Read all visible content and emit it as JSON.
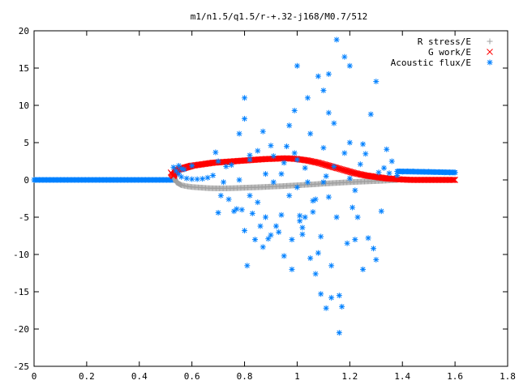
{
  "chart_data": {
    "type": "scatter",
    "title": "m1/n1.5/q1.5/r-+.32-j168/M0.7/512",
    "xlabel": "",
    "ylabel": "",
    "xlim": [
      0,
      1.8
    ],
    "ylim": [
      -25,
      20
    ],
    "x_ticks": [
      0,
      0.2,
      0.4,
      0.6,
      0.8,
      1,
      1.2,
      1.4,
      1.6,
      1.8
    ],
    "x_tick_labels": [
      "0",
      "0.2",
      "0.4",
      "0.6",
      "0.8",
      "1",
      "1.2",
      "1.4",
      "1.6",
      "1.8"
    ],
    "y_ticks": [
      -25,
      -20,
      -15,
      -10,
      -5,
      0,
      5,
      10,
      15,
      20
    ],
    "y_tick_labels": [
      "-25",
      "-20",
      "-15",
      "-10",
      "-5",
      "0",
      "5",
      "10",
      "15",
      "20"
    ],
    "grid": false,
    "legend_position": "top-right",
    "series": [
      {
        "name": "R stress/E",
        "marker": "plus",
        "color": "#a0a0a0",
        "points": [
          [
            0.53,
            0.9
          ],
          [
            0.535,
            0.2
          ],
          [
            0.54,
            -0.3
          ],
          [
            0.55,
            -0.5
          ],
          [
            0.56,
            -0.7
          ],
          [
            0.58,
            -0.85
          ],
          [
            0.6,
            -0.95
          ],
          [
            0.62,
            -1.0
          ],
          [
            0.64,
            -1.05
          ],
          [
            0.66,
            -1.1
          ],
          [
            0.68,
            -1.12
          ],
          [
            0.7,
            -1.13
          ],
          [
            0.72,
            -1.13
          ],
          [
            0.74,
            -1.12
          ],
          [
            0.76,
            -1.1
          ],
          [
            0.78,
            -1.08
          ],
          [
            0.8,
            -1.05
          ],
          [
            0.82,
            -1.02
          ],
          [
            0.84,
            -1.0
          ],
          [
            0.86,
            -0.97
          ],
          [
            0.88,
            -0.94
          ],
          [
            0.9,
            -0.9
          ],
          [
            0.92,
            -0.87
          ],
          [
            0.94,
            -0.84
          ],
          [
            0.96,
            -0.8
          ],
          [
            0.98,
            -0.76
          ],
          [
            1.0,
            -0.72
          ],
          [
            1.02,
            -0.68
          ],
          [
            1.04,
            -0.64
          ],
          [
            1.06,
            -0.6
          ],
          [
            1.08,
            -0.55
          ],
          [
            1.1,
            -0.5
          ],
          [
            1.12,
            -0.46
          ],
          [
            1.14,
            -0.42
          ],
          [
            1.16,
            -0.38
          ],
          [
            1.18,
            -0.34
          ],
          [
            1.2,
            -0.3
          ],
          [
            1.22,
            -0.27
          ],
          [
            1.24,
            -0.24
          ],
          [
            1.26,
            -0.21
          ],
          [
            1.28,
            -0.18
          ],
          [
            1.3,
            -0.15
          ],
          [
            1.32,
            -0.12
          ],
          [
            1.34,
            -0.08
          ],
          [
            1.36,
            -0.03
          ],
          [
            1.38,
            0.0
          ]
        ]
      },
      {
        "name": "G work/E",
        "marker": "cross",
        "color": "#ff0000",
        "points": [
          [
            0.52,
            1.0
          ],
          [
            0.53,
            0.5
          ],
          [
            0.535,
            0.9
          ],
          [
            0.54,
            1.2
          ],
          [
            0.55,
            1.4
          ],
          [
            0.56,
            1.5
          ],
          [
            0.57,
            1.6
          ],
          [
            0.58,
            1.7
          ],
          [
            0.59,
            1.8
          ],
          [
            0.6,
            1.9
          ],
          [
            0.62,
            2.0
          ],
          [
            0.64,
            2.1
          ],
          [
            0.66,
            2.2
          ],
          [
            0.68,
            2.3
          ],
          [
            0.7,
            2.35
          ],
          [
            0.72,
            2.4
          ],
          [
            0.74,
            2.45
          ],
          [
            0.76,
            2.5
          ],
          [
            0.78,
            2.55
          ],
          [
            0.8,
            2.6
          ],
          [
            0.82,
            2.65
          ],
          [
            0.84,
            2.7
          ],
          [
            0.86,
            2.75
          ],
          [
            0.88,
            2.8
          ],
          [
            0.9,
            2.82
          ],
          [
            0.92,
            2.85
          ],
          [
            0.94,
            2.88
          ],
          [
            0.96,
            2.9
          ],
          [
            0.98,
            2.85
          ],
          [
            1.0,
            2.8
          ],
          [
            1.02,
            2.7
          ],
          [
            1.04,
            2.6
          ],
          [
            1.06,
            2.45
          ],
          [
            1.08,
            2.3
          ],
          [
            1.1,
            2.1
          ],
          [
            1.12,
            1.9
          ],
          [
            1.14,
            1.7
          ],
          [
            1.16,
            1.5
          ],
          [
            1.18,
            1.3
          ],
          [
            1.2,
            1.1
          ],
          [
            1.22,
            0.9
          ],
          [
            1.24,
            0.75
          ],
          [
            1.26,
            0.6
          ],
          [
            1.28,
            0.5
          ],
          [
            1.3,
            0.4
          ],
          [
            1.32,
            0.3
          ],
          [
            1.34,
            0.2
          ],
          [
            1.36,
            0.15
          ],
          [
            1.38,
            0.1
          ],
          [
            1.4,
            0.05
          ],
          [
            1.42,
            0.02
          ],
          [
            1.44,
            0.0
          ],
          [
            1.46,
            0.0
          ],
          [
            1.48,
            0.0
          ],
          [
            1.5,
            0.0
          ],
          [
            1.52,
            0.0
          ],
          [
            1.54,
            0.0
          ],
          [
            1.56,
            0.0
          ],
          [
            1.58,
            0.0
          ],
          [
            1.6,
            0.0
          ]
        ]
      },
      {
        "name": "Acoustic flux/E",
        "marker": "star",
        "color": "#0080ff",
        "points": [
          [
            0.53,
            1.7
          ],
          [
            0.54,
            1.2
          ],
          [
            0.55,
            0.8
          ],
          [
            0.56,
            0.4
          ],
          [
            0.58,
            0.2
          ],
          [
            0.6,
            0.1
          ],
          [
            0.62,
            0.1
          ],
          [
            0.64,
            0.15
          ],
          [
            0.66,
            0.3
          ],
          [
            0.68,
            0.6
          ],
          [
            0.55,
            1.9
          ],
          [
            0.56,
            1.5
          ],
          [
            0.57,
            1.4
          ],
          [
            0.6,
            1.9
          ],
          [
            0.69,
            3.7
          ],
          [
            0.7,
            2.5
          ],
          [
            0.7,
            -4.4
          ],
          [
            0.71,
            -2.1
          ],
          [
            0.72,
            -0.3
          ],
          [
            0.73,
            1.8
          ],
          [
            0.74,
            -2.6
          ],
          [
            0.75,
            2.0
          ],
          [
            0.76,
            -4.2
          ],
          [
            0.77,
            -3.9
          ],
          [
            0.78,
            0.0
          ],
          [
            0.78,
            6.2
          ],
          [
            0.79,
            -4.0
          ],
          [
            0.8,
            11.0
          ],
          [
            0.8,
            8.2
          ],
          [
            0.8,
            -6.8
          ],
          [
            0.81,
            -11.5
          ],
          [
            0.82,
            2.7
          ],
          [
            0.82,
            -2.1
          ],
          [
            0.82,
            3.3
          ],
          [
            0.83,
            -4.5
          ],
          [
            0.84,
            -8.0
          ],
          [
            0.85,
            3.9
          ],
          [
            0.85,
            -3.0
          ],
          [
            0.86,
            -6.2
          ],
          [
            0.87,
            6.5
          ],
          [
            0.87,
            -9.0
          ],
          [
            0.88,
            0.8
          ],
          [
            0.88,
            -5.0
          ],
          [
            0.89,
            -7.9
          ],
          [
            0.9,
            4.6
          ],
          [
            0.9,
            -7.4
          ],
          [
            0.91,
            -0.3
          ],
          [
            0.91,
            3.2
          ],
          [
            0.92,
            -6.2
          ],
          [
            0.93,
            -7.0
          ],
          [
            0.94,
            0.8
          ],
          [
            0.94,
            -4.7
          ],
          [
            0.95,
            -10.2
          ],
          [
            0.95,
            2.3
          ],
          [
            0.96,
            4.5
          ],
          [
            0.97,
            -2.1
          ],
          [
            0.98,
            -8.0
          ],
          [
            0.98,
            -12.0
          ],
          [
            0.99,
            3.6
          ],
          [
            1.0,
            -1.0
          ],
          [
            1.0,
            15.3
          ],
          [
            1.0,
            2.7
          ],
          [
            1.01,
            -5.5
          ],
          [
            1.02,
            -7.3
          ],
          [
            1.03,
            1.6
          ],
          [
            1.03,
            -5.0
          ],
          [
            1.04,
            -0.3
          ],
          [
            1.04,
            11.0
          ],
          [
            1.05,
            6.2
          ],
          [
            1.06,
            -4.3
          ],
          [
            1.07,
            -2.6
          ],
          [
            1.08,
            -9.8
          ],
          [
            1.09,
            -7.6
          ],
          [
            1.1,
            4.3
          ],
          [
            1.1,
            -0.3
          ],
          [
            1.11,
            0.5
          ],
          [
            1.12,
            -2.3
          ],
          [
            1.12,
            9.0
          ],
          [
            1.13,
            -11.5
          ],
          [
            1.14,
            1.8
          ],
          [
            1.14,
            7.6
          ],
          [
            1.15,
            18.8
          ],
          [
            1.15,
            -5.0
          ],
          [
            1.16,
            -15.5
          ],
          [
            1.16,
            -20.5
          ],
          [
            1.17,
            -17.0
          ],
          [
            1.18,
            3.6
          ],
          [
            1.18,
            16.5
          ],
          [
            1.19,
            -8.5
          ],
          [
            1.2,
            0.2
          ],
          [
            1.2,
            5.0
          ],
          [
            1.21,
            -3.7
          ],
          [
            1.22,
            -8.0
          ],
          [
            1.22,
            -1.4
          ],
          [
            1.23,
            -5.0
          ],
          [
            1.24,
            2.1
          ],
          [
            1.25,
            4.8
          ],
          [
            1.25,
            -12.0
          ],
          [
            1.26,
            3.5
          ],
          [
            1.27,
            -7.8
          ],
          [
            1.28,
            8.8
          ],
          [
            1.29,
            -9.2
          ],
          [
            1.3,
            13.2
          ],
          [
            1.3,
            -10.7
          ],
          [
            1.31,
            1.0
          ],
          [
            1.32,
            -4.2
          ],
          [
            1.33,
            1.6
          ],
          [
            1.34,
            4.1
          ],
          [
            1.35,
            0.9
          ],
          [
            1.36,
            2.5
          ],
          [
            1.05,
            -10.5
          ],
          [
            1.07,
            -12.6
          ],
          [
            1.09,
            -15.3
          ],
          [
            1.11,
            -17.2
          ],
          [
            1.13,
            -15.8
          ],
          [
            1.1,
            12.0
          ],
          [
            1.2,
            15.3
          ],
          [
            1.06,
            -2.8
          ],
          [
            1.02,
            -6.4
          ],
          [
            0.97,
            7.3
          ],
          [
            0.99,
            9.3
          ],
          [
            1.01,
            -4.8
          ],
          [
            1.08,
            13.9
          ],
          [
            1.12,
            14.2
          ],
          [
            1.38,
            0.6
          ],
          [
            1.4,
            1.1
          ],
          [
            1.42,
            1.15
          ],
          [
            1.44,
            1.15
          ],
          [
            1.46,
            1.1
          ],
          [
            1.48,
            1.1
          ],
          [
            1.5,
            1.1
          ],
          [
            1.52,
            1.05
          ],
          [
            1.54,
            1.05
          ],
          [
            1.56,
            1.0
          ],
          [
            1.58,
            1.0
          ],
          [
            1.6,
            1.0
          ]
        ]
      }
    ]
  }
}
